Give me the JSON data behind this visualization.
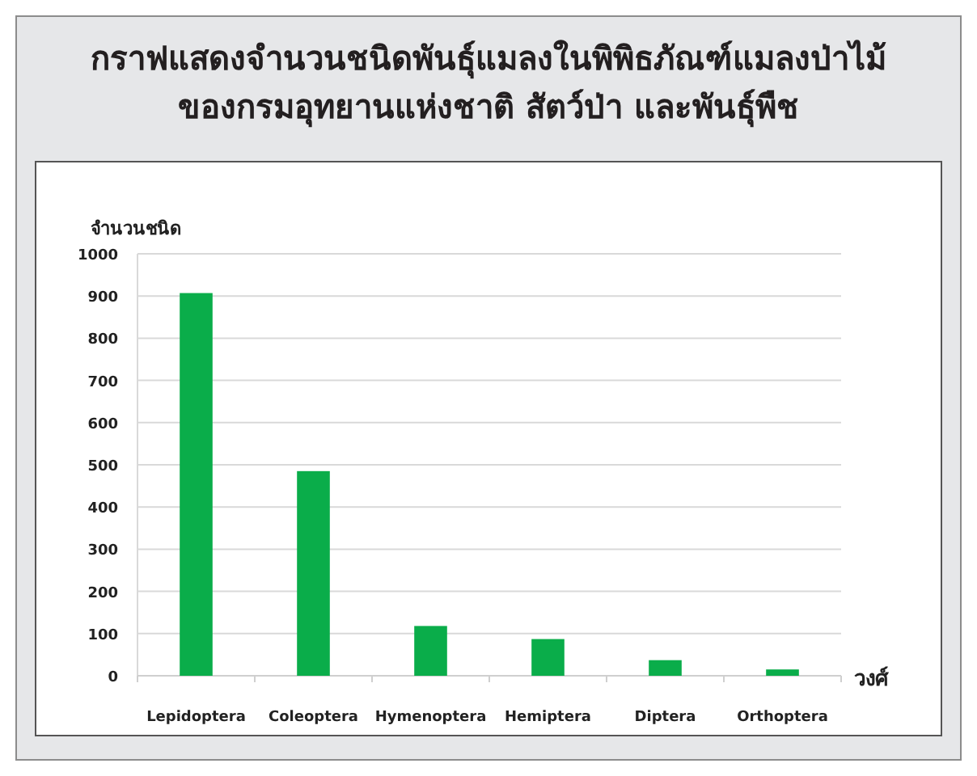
{
  "chart_data": {
    "type": "bar",
    "title": "กราฟแสดงจำนวนชนิดพันธุ์แมลงในพิพิธภัณฑ์แมลงป่าไม้\nของกรมอุทยานแห่งชาติ สัตว์ป่า และพันธุ์พืช",
    "ylabel": "จำนวนชนิด",
    "xlabel": "วงศ์",
    "categories": [
      "Lepidoptera",
      "Coleoptera",
      "Hymenoptera",
      "Hemiptera",
      "Diptera",
      "Orthoptera"
    ],
    "values": [
      907,
      485,
      118,
      87,
      37,
      15
    ],
    "color": "#0aad4a",
    "ylim": [
      0,
      1000
    ],
    "yticks": [
      0,
      100,
      200,
      300,
      400,
      500,
      600,
      700,
      800,
      900,
      1000
    ],
    "grid": "y"
  }
}
